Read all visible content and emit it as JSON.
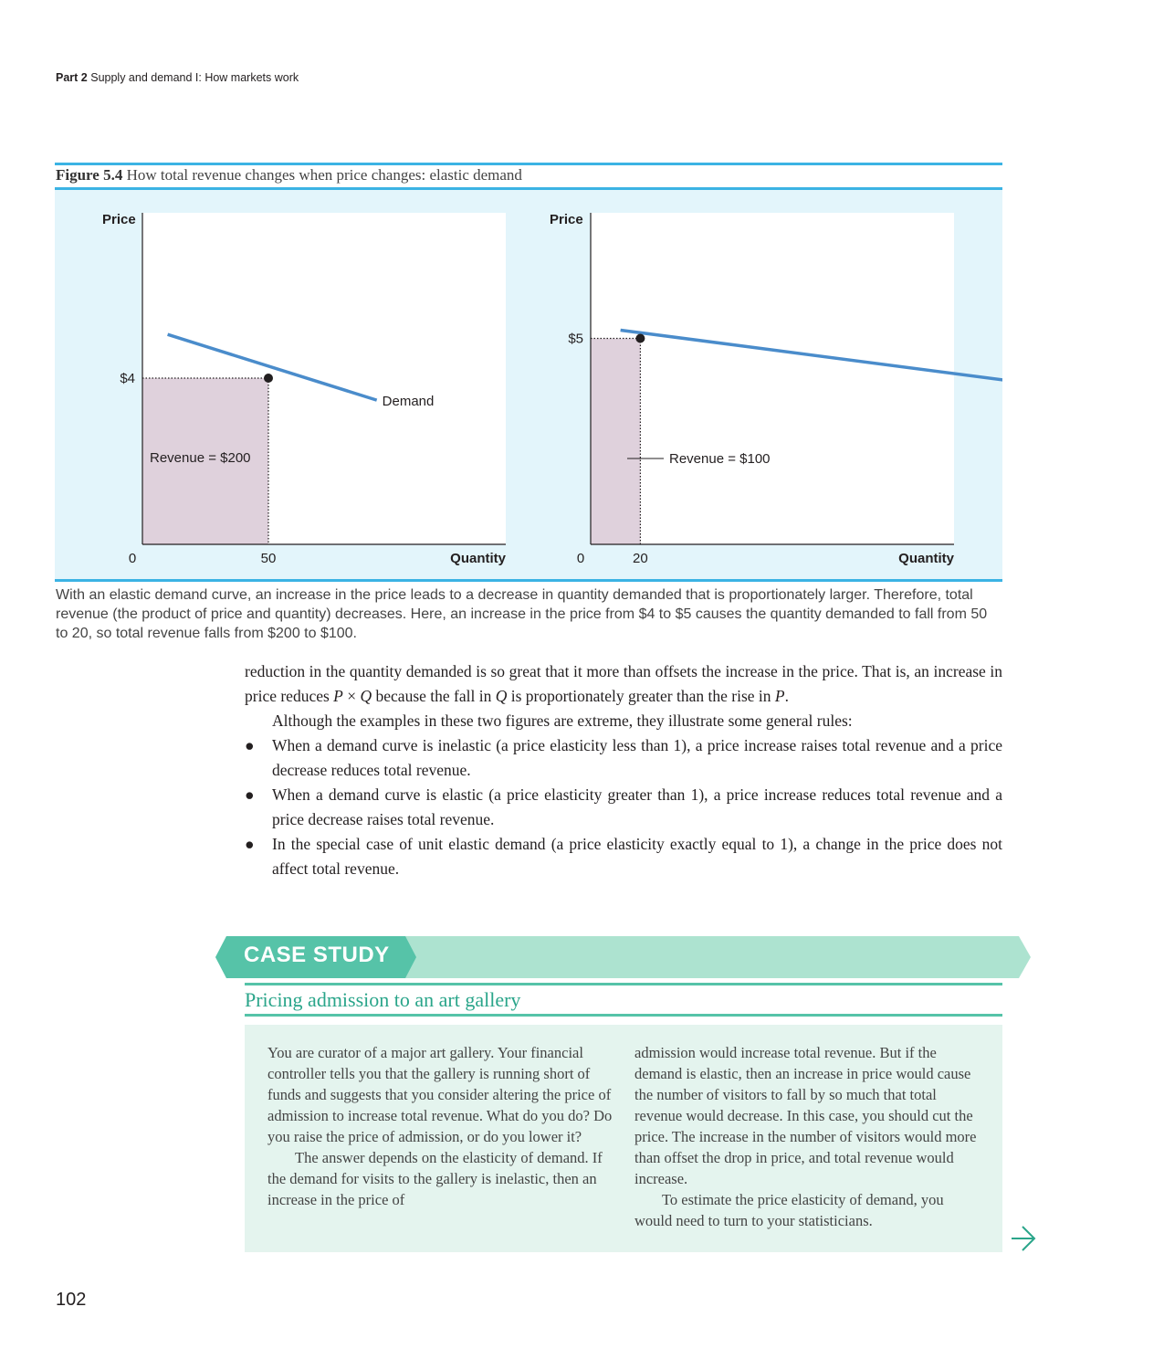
{
  "running_head": {
    "part": "Part 2",
    "title": "Supply and demand I: How markets work"
  },
  "figure": {
    "number": "Figure 5.4",
    "caption": "How total revenue changes when price changes: elastic demand",
    "description": "With an elastic demand curve, an increase in the price leads to a decrease in quantity demanded that is proportionately larger. Therefore, total revenue (the product of price and quantity) decreases. Here, an increase in the price from $4 to $5 causes the quantity demanded to fall from 50 to 20, so total revenue falls from $200 to $100."
  },
  "chart_data": [
    {
      "type": "line",
      "ylabel": "Price",
      "xlabel": "Quantity",
      "origin_label": "0",
      "x_ticks": [
        "50"
      ],
      "y_ticks": [
        "$4"
      ],
      "series": [
        {
          "name": "Demand",
          "x": [
            10,
            93
          ],
          "y": [
            5.05,
            3.47
          ]
        }
      ],
      "point": {
        "x": 50,
        "y": 4
      },
      "area_label": "Revenue = $200",
      "colors": {
        "demand": "#4a8ccb",
        "revenue_area": "#dfd1dc"
      }
    },
    {
      "type": "line",
      "ylabel": "Price",
      "xlabel": "Quantity",
      "origin_label": "0",
      "x_ticks": [
        "20"
      ],
      "y_ticks": [
        "$5"
      ],
      "series": [
        {
          "name": "Demand",
          "x": [
            12,
            216
          ],
          "y": [
            5.2,
            3.6
          ]
        }
      ],
      "point": {
        "x": 20,
        "y": 5
      },
      "area_label": "Revenue = $100",
      "colors": {
        "demand": "#4a8ccb",
        "revenue_area": "#dfd1dc"
      }
    }
  ],
  "body": {
    "para1_a": "reduction in the quantity demanded is so great that it more than offsets the increase in the price. That is, an increase in price reduces ",
    "para1_P": "P",
    "para1_times": " × ",
    "para1_Q": "Q",
    "para1_b": " because the fall in ",
    "para1_Q2": "Q",
    "para1_c": " is proportionately greater than the rise in ",
    "para1_P2": "P",
    "para1_end": ".",
    "para2": "Although the examples in these two figures are extreme, they illustrate some general rules:",
    "bullet_symbol": "●",
    "rules": [
      "When a demand curve is inelastic (a price elasticity less than 1), a price increase raises total revenue and a price decrease reduces total revenue.",
      "When a demand curve is elastic (a price elasticity greater than 1), a price increase reduces total revenue and a price decrease raises total revenue.",
      "In the special case of unit elastic demand (a price elasticity exactly equal to 1), a change in the price does not affect total revenue."
    ]
  },
  "case_study": {
    "label": "CASE STUDY",
    "title": "Pricing admission to an art gallery",
    "col1_p1": "You are curator of a major art gallery. Your financial controller tells you that the gallery is running short of funds and suggests that you consider altering the price of admission to increase total revenue. What do you do? Do you raise the price of admission, or do you lower it?",
    "col1_p2": "The answer depends on the elasticity of demand. If the demand for visits to the gallery is inelastic, then an increase in the price of",
    "col2_p1": "admission would increase total revenue. But if the demand is elastic, then an increase in price would cause the number of visitors to fall by so much that total revenue would decrease. In this case, you should cut the price. The increase in the number of visitors would more than offset the drop in price, and total revenue would increase.",
    "col2_p2": "To estimate the price elasticity of demand, you would need to turn to your statisticians."
  },
  "page_number": "102",
  "colors": {
    "figure_accent": "#3bb3e4",
    "figure_bg": "#e3f5fb",
    "case_accent": "#56c3a8",
    "case_bg": "#e4f4ee",
    "case_banner": "#ade3d0"
  },
  "icons": {
    "continue": "arrow-right-icon"
  }
}
